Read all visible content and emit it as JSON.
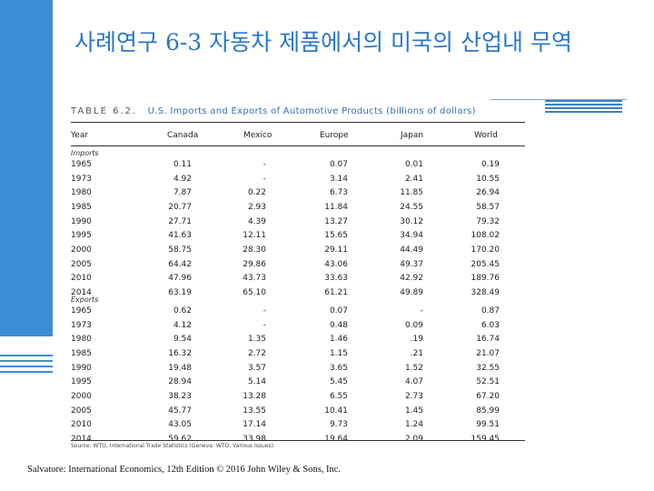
{
  "slide": {
    "title": "사례연구 6-3  자동차 제품에서의 미국의 산업내 무역",
    "footer": "Salvatore: International Economics, 12th Edition © 2016 John Wiley & Sons, Inc.",
    "accent_color": "#3b8ed6"
  },
  "table": {
    "label": "TABLE 6.2.",
    "caption": "U.S. Imports and Exports of Automotive Products (billions of dollars)",
    "headers": [
      "Year",
      "Canada",
      "Mexico",
      "Europe",
      "Japan",
      "World"
    ],
    "imports_label": "Imports",
    "exports_label": "Exports",
    "imports": [
      [
        "1965",
        "0.11",
        "-",
        "0.07",
        "0.01",
        "0.19"
      ],
      [
        "1973",
        "4.92",
        "-",
        "3.14",
        "2.41",
        "10.55"
      ],
      [
        "1980",
        "7.87",
        "0.22",
        "6.73",
        "11.85",
        "26.94"
      ],
      [
        "1985",
        "20.77",
        "2.93",
        "11.84",
        "24.55",
        "58.57"
      ],
      [
        "1990",
        "27.71",
        "4.39",
        "13.27",
        "30.12",
        "79.32"
      ],
      [
        "1995",
        "41.63",
        "12.11",
        "15.65",
        "34.94",
        "108.02"
      ],
      [
        "2000",
        "58.75",
        "28.30",
        "29.11",
        "44.49",
        "170.20"
      ],
      [
        "2005",
        "64.42",
        "29.86",
        "43.06",
        "49.37",
        "205.45"
      ],
      [
        "2010",
        "47.96",
        "43.73",
        "33.63",
        "42.92",
        "189.76"
      ],
      [
        "2014",
        "63.19",
        "65.10",
        "61.21",
        "49.89",
        "328.49"
      ]
    ],
    "exports": [
      [
        "1965",
        "0.62",
        "-",
        "0.07",
        "-",
        "0.87"
      ],
      [
        "1973",
        "4.12",
        "-",
        "0.48",
        "0.09",
        "6.03"
      ],
      [
        "1980",
        "9.54",
        "1.35",
        "1.46",
        ".19",
        "16.74"
      ],
      [
        "1985",
        "16.32",
        "2.72",
        "1.15",
        ".21",
        "21.07"
      ],
      [
        "1990",
        "19.48",
        "3.57",
        "3.65",
        "1.52",
        "32.55"
      ],
      [
        "1995",
        "28.94",
        "5.14",
        "5.45",
        "4.07",
        "52.51"
      ],
      [
        "2000",
        "38.23",
        "13.28",
        "6.55",
        "2.73",
        "67.20"
      ],
      [
        "2005",
        "45.77",
        "13.55",
        "10.41",
        "1.45",
        "85.99"
      ],
      [
        "2010",
        "43.05",
        "17.14",
        "9.73",
        "1.24",
        "99.51"
      ],
      [
        "2014",
        "59.62",
        "33.98",
        "19.64",
        "2.09",
        "159.45"
      ]
    ],
    "source": "Source: WTO, International Trade Statistics (Geneva: WTO, Various Issues)."
  }
}
